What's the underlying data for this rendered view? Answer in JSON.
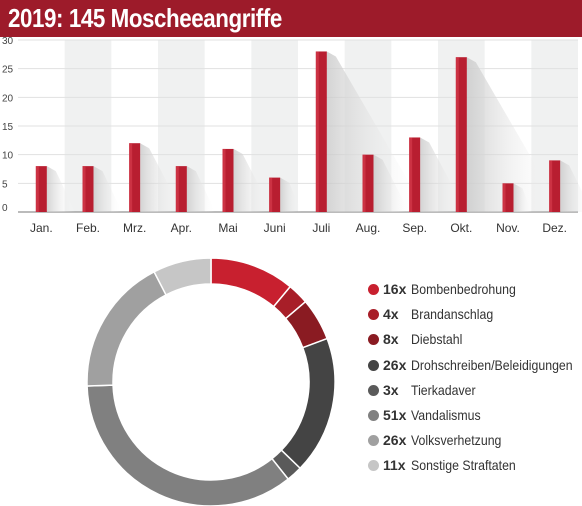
{
  "title": "2019: 145 Moscheeangriffe",
  "colors": {
    "title_bg": "#9d1b2a",
    "bar": "#b81e30",
    "band": "#f0f1f1"
  },
  "chart_data": [
    {
      "type": "bar",
      "categories": [
        "Jan.",
        "Feb.",
        "Mrz.",
        "Apr.",
        "Mai",
        "Juni",
        "Juli",
        "Aug.",
        "Sep.",
        "Okt.",
        "Nov.",
        "Dez."
      ],
      "values": [
        8,
        8,
        12,
        8,
        11,
        6,
        28,
        10,
        13,
        27,
        5,
        9
      ],
      "yticks": [
        0,
        5,
        10,
        15,
        20,
        25,
        30
      ],
      "ylim": [
        0,
        30
      ],
      "grid": true
    },
    {
      "type": "pie",
      "style": "donut",
      "legend_position": "right",
      "slices": [
        {
          "count": 16,
          "count_label": "16x",
          "label": "Bombenbedrohung",
          "color": "#c8202f"
        },
        {
          "count": 4,
          "count_label": "4x",
          "label": "Brandanschlag",
          "color": "#a81e28"
        },
        {
          "count": 8,
          "count_label": "8x",
          "label": "Diebstahl",
          "color": "#8a1b22"
        },
        {
          "count": 26,
          "count_label": "26x",
          "label": "Drohschreiben/Beleidigungen",
          "color": "#444444"
        },
        {
          "count": 3,
          "count_label": "3x",
          "label": "Tierkadaver",
          "color": "#5a5a5a"
        },
        {
          "count": 51,
          "count_label": "51x",
          "label": "Vandalismus",
          "color": "#808080"
        },
        {
          "count": 26,
          "count_label": "26x",
          "label": "Volksverhetzung",
          "color": "#a0a0a0"
        },
        {
          "count": 11,
          "count_label": "11x",
          "label": "Sonstige Straftaten",
          "color": "#c6c6c6"
        }
      ]
    }
  ]
}
